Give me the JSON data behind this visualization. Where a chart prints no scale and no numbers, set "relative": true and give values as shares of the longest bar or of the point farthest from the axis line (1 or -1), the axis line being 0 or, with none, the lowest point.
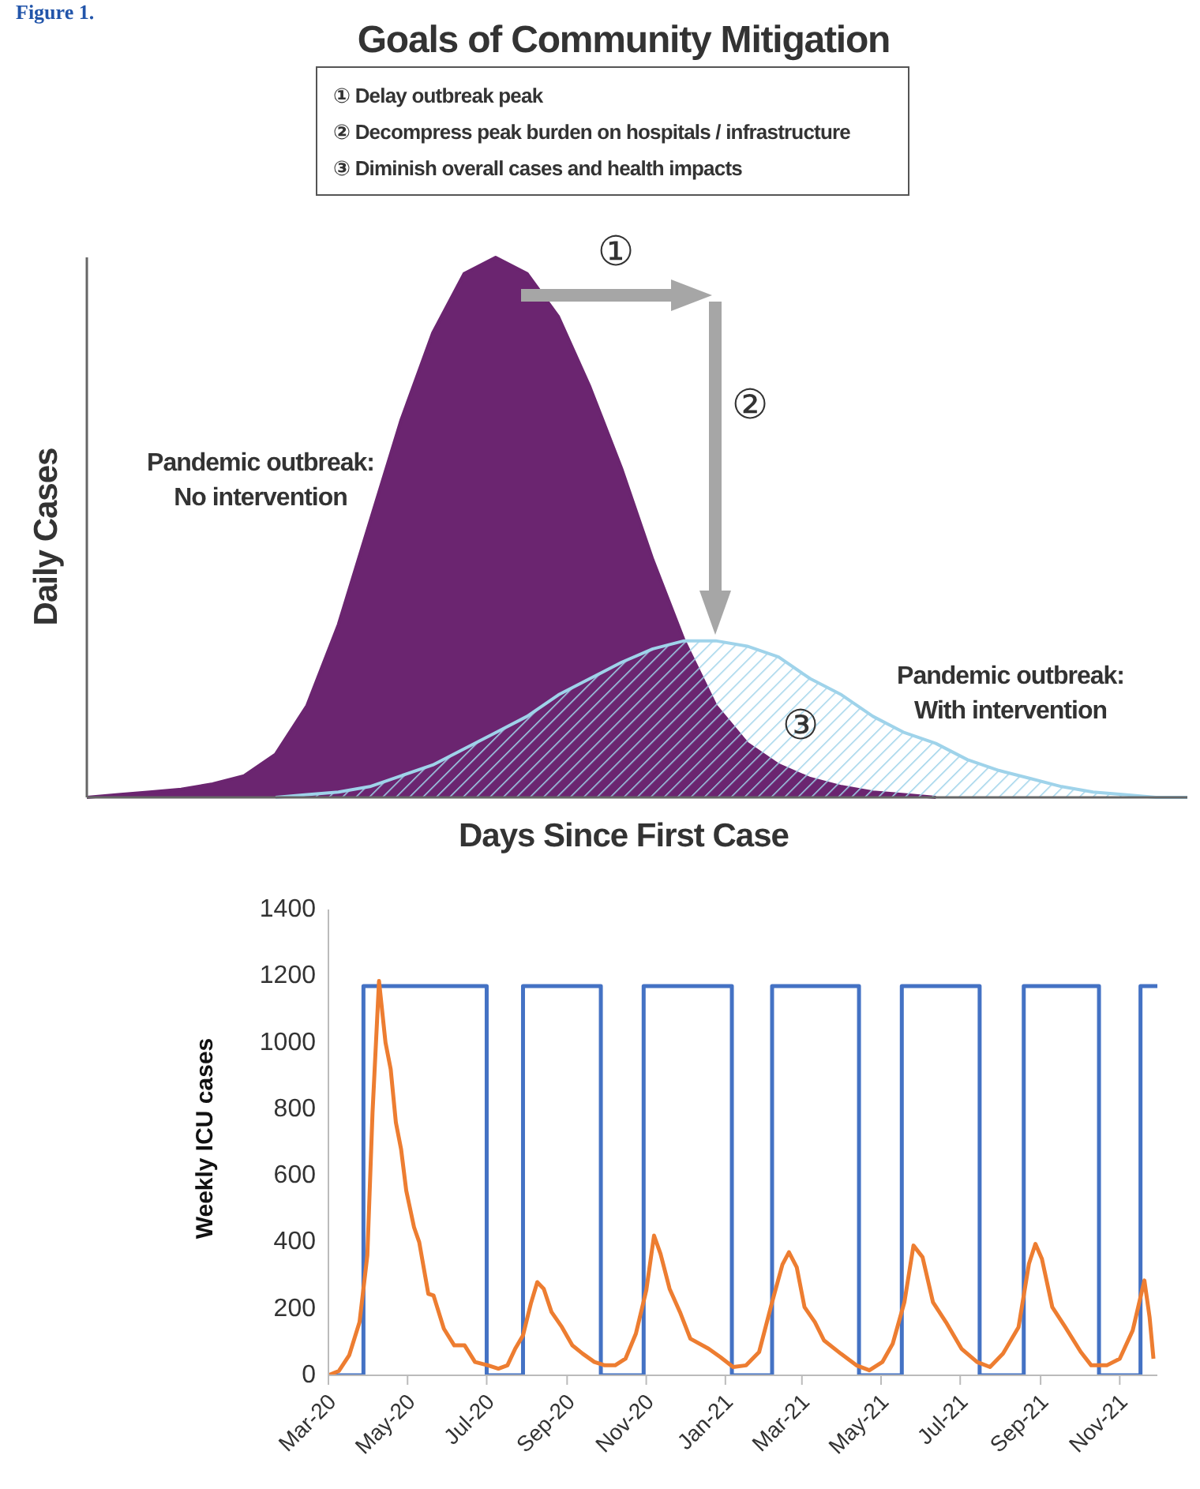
{
  "chart_data": [
    {
      "type": "area",
      "title": "Goals of Community Mitigation",
      "xlabel": "Days Since First Case",
      "ylabel": "Daily Cases",
      "relative": true,
      "annotations": [
        "Figure 1.",
        "① Delay outbreak peak",
        "② Decompress peak burden on hospitals / infrastructure",
        "③ Diminish overall cases and health impacts",
        "①",
        "②",
        "③"
      ],
      "categories": [
        null,
        null,
        null,
        null,
        null,
        null,
        null,
        null,
        null,
        null,
        null,
        null,
        null,
        null,
        null,
        null,
        null,
        null,
        null,
        null,
        null,
        null,
        null,
        null,
        null,
        null,
        null,
        null,
        null,
        null,
        null,
        null,
        null,
        null,
        null,
        null
      ],
      "series": [
        {
          "name": "Pandemic outbreak: No intervention",
          "color": "#6b2570",
          "values": [
            0,
            0.005,
            0.01,
            0.015,
            0.025,
            0.04,
            0.08,
            0.17,
            0.32,
            0.51,
            0.7,
            0.86,
            0.97,
            1,
            0.97,
            0.89,
            0.76,
            0.61,
            0.44,
            0.29,
            0.17,
            0.1,
            0.06,
            0.035,
            0.02,
            0.01,
            0.005,
            0,
            null,
            null,
            null,
            null,
            null,
            null,
            null,
            null
          ]
        },
        {
          "name": "Pandemic outbreak: With intervention",
          "color": "#9fd3ea",
          "values": [
            null,
            null,
            null,
            null,
            null,
            null,
            0,
            0.005,
            0.01,
            0.02,
            0.04,
            0.06,
            0.09,
            0.12,
            0.15,
            0.19,
            0.22,
            0.25,
            0.275,
            0.29,
            0.29,
            0.28,
            0.26,
            0.22,
            0.19,
            0.15,
            0.12,
            0.1,
            0.07,
            0.05,
            0.035,
            0.02,
            0.01,
            0.005,
            0,
            0
          ]
        }
      ]
    },
    {
      "type": "line",
      "ylabel": "Weekly ICU cases",
      "marker": "none",
      "xlim": [
        "2020-03-01",
        "2021-11-30"
      ],
      "xticks": [
        {
          "value": "2020-03-01",
          "label": "Mar-20"
        },
        {
          "value": "2020-05-01",
          "label": "May-20"
        },
        {
          "value": "2020-07-01",
          "label": "Jul-20"
        },
        {
          "value": "2020-09-01",
          "label": "Sep-20"
        },
        {
          "value": "2020-11-01",
          "label": "Nov-20"
        },
        {
          "value": "2021-01-01",
          "label": "Jan-21"
        },
        {
          "value": "2021-03-01",
          "label": "Mar-21"
        },
        {
          "value": "2021-05-01",
          "label": "May-21"
        },
        {
          "value": "2021-07-01",
          "label": "Jul-21"
        },
        {
          "value": "2021-09-01",
          "label": "Sep-21"
        },
        {
          "value": "2021-11-01",
          "label": "Nov-21"
        }
      ],
      "ylim": [
        0,
        1400
      ],
      "yticks": [
        0,
        200,
        400,
        600,
        800,
        1000,
        1200,
        1400
      ],
      "series": [
        {
          "type": "step",
          "color": "#4472c4",
          "x": [
            "2020-03-01",
            "2020-03-28",
            "2020-07-01",
            "2020-07-29",
            "2020-09-27",
            "2020-10-30",
            "2021-01-06",
            "2021-02-06",
            "2021-04-14",
            "2021-05-17",
            "2021-07-16",
            "2021-08-19",
            "2021-10-16",
            "2021-11-17",
            "2021-11-30"
          ],
          "values": [
            0,
            1170,
            0,
            1170,
            0,
            1170,
            0,
            1170,
            0,
            1170,
            0,
            1170,
            0,
            1170,
            1170
          ]
        },
        {
          "type": "line",
          "color": "#ed7d31",
          "x": [
            "2020-03-01",
            "2020-03-09",
            "2020-03-17",
            "2020-03-25",
            "2020-03-31",
            "2020-04-04",
            "2020-04-09",
            "2020-04-14",
            "2020-04-18",
            "2020-04-22",
            "2020-04-26",
            "2020-04-30",
            "2020-05-06",
            "2020-05-10",
            "2020-05-17",
            "2020-05-21",
            "2020-05-29",
            "2020-06-06",
            "2020-06-14",
            "2020-06-22",
            "2020-07-02",
            "2020-07-10",
            "2020-07-17",
            "2020-07-23",
            "2020-07-29",
            "2020-08-04",
            "2020-08-09",
            "2020-08-14",
            "2020-08-20",
            "2020-08-28",
            "2020-09-05",
            "2020-09-13",
            "2020-09-22",
            "2020-09-30",
            "2020-10-08",
            "2020-10-16",
            "2020-10-24",
            "2020-11-01",
            "2020-11-07",
            "2020-11-12",
            "2020-11-19",
            "2020-11-27",
            "2020-12-05",
            "2020-12-19",
            "2020-12-28",
            "2021-01-07",
            "2021-01-17",
            "2021-01-27",
            "2021-02-06",
            "2021-02-14",
            "2021-02-19",
            "2021-02-25",
            "2021-03-03",
            "2021-03-11",
            "2021-03-18",
            "2021-03-31",
            "2021-04-12",
            "2021-04-22",
            "2021-05-02",
            "2021-05-10",
            "2021-05-19",
            "2021-05-26",
            "2021-06-02",
            "2021-06-10",
            "2021-06-20",
            "2021-07-02",
            "2021-07-14",
            "2021-07-24",
            "2021-08-03",
            "2021-08-15",
            "2021-08-23",
            "2021-08-28",
            "2021-09-02",
            "2021-09-10",
            "2021-09-20",
            "2021-10-02",
            "2021-10-10",
            "2021-10-22",
            "2021-11-01",
            "2021-11-11",
            "2021-11-20",
            "2021-11-24",
            "2021-11-27"
          ],
          "values": [
            0,
            13,
            60,
            160,
            360,
            790,
            1185,
            1000,
            920,
            760,
            680,
            555,
            445,
            400,
            245,
            240,
            140,
            90,
            90,
            40,
            30,
            20,
            30,
            80,
            120,
            215,
            280,
            260,
            190,
            145,
            90,
            65,
            40,
            30,
            30,
            50,
            125,
            255,
            420,
            365,
            260,
            190,
            110,
            80,
            55,
            25,
            30,
            70,
            220,
            333,
            370,
            325,
            205,
            160,
            105,
            65,
            30,
            15,
            40,
            95,
            220,
            390,
            355,
            220,
            160,
            80,
            40,
            25,
            65,
            145,
            335,
            395,
            350,
            205,
            145,
            70,
            30,
            30,
            50,
            135,
            285,
            175,
            50
          ]
        }
      ]
    }
  ]
}
